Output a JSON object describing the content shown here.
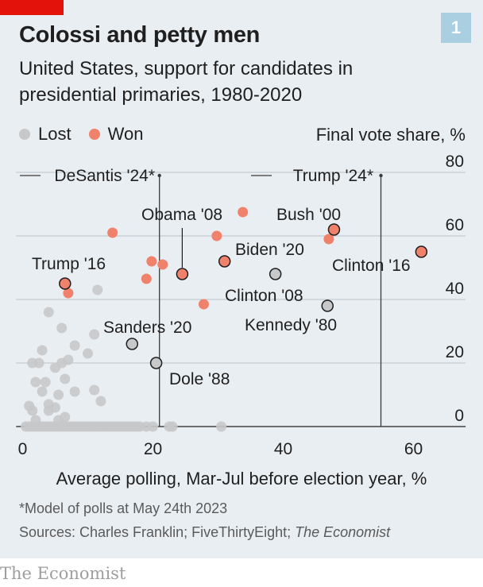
{
  "header": {
    "title": "Colossi and petty men",
    "subtitle": "United States, support for candidates in presidential primaries, 1980-2020",
    "badge": "1"
  },
  "legend": {
    "lost": "Lost",
    "won": "Won"
  },
  "colors": {
    "lost": "#c7c8ca",
    "won": "#f0826c",
    "outline": "#1f1f1f",
    "grid": "#b9c3ca",
    "background": "#e9eef2",
    "accent": "#e3120b"
  },
  "footer": {
    "footnote": "*Model of polls at May 24th 2023",
    "sources_prefix": "Sources: Charles Franklin; FiveThirtyEight; ",
    "sources_italic": "The Economist",
    "brand": "The Economist"
  },
  "chart_data": {
    "type": "scatter",
    "xlabel": "Average polling, Mar-Jul before election year, %",
    "ylabel": "Final vote share, %",
    "xlim": [
      -1,
      68
    ],
    "ylim": [
      0,
      80
    ],
    "xticks": [
      0,
      20,
      40,
      60
    ],
    "yticks": [
      0,
      20,
      40,
      60,
      80
    ],
    "grid": true,
    "legend_position": "top-left",
    "series": [
      {
        "name": "Lost",
        "points": [
          [
            0.5,
            0
          ],
          [
            1,
            0
          ],
          [
            1.5,
            0
          ],
          [
            2,
            0
          ],
          [
            2.5,
            0
          ],
          [
            3,
            0
          ],
          [
            3.5,
            0
          ],
          [
            4,
            0
          ],
          [
            4.5,
            0
          ],
          [
            5,
            0
          ],
          [
            5.5,
            0
          ],
          [
            6,
            0
          ],
          [
            6.5,
            0
          ],
          [
            7,
            0
          ],
          [
            7.5,
            0
          ],
          [
            8,
            0
          ],
          [
            8.5,
            0
          ],
          [
            9,
            0
          ],
          [
            9.5,
            0
          ],
          [
            10,
            0
          ],
          [
            10.5,
            0
          ],
          [
            11,
            0
          ],
          [
            11.5,
            0
          ],
          [
            12,
            0
          ],
          [
            12.5,
            0
          ],
          [
            13,
            0
          ],
          [
            13.5,
            0
          ],
          [
            14,
            0
          ],
          [
            14.5,
            0
          ],
          [
            15,
            0
          ],
          [
            15.5,
            0
          ],
          [
            16,
            0
          ],
          [
            16.5,
            0
          ],
          [
            17,
            0
          ],
          [
            17.5,
            0
          ],
          [
            18,
            0
          ],
          [
            19,
            0
          ],
          [
            20,
            0
          ],
          [
            22.5,
            0
          ],
          [
            23,
            0
          ],
          [
            30.5,
            0
          ],
          [
            1,
            6.5
          ],
          [
            1.5,
            5
          ],
          [
            2,
            2
          ],
          [
            1.5,
            20
          ],
          [
            2.5,
            20
          ],
          [
            2,
            14
          ],
          [
            3,
            24
          ],
          [
            3,
            11
          ],
          [
            3.5,
            14
          ],
          [
            4,
            5
          ],
          [
            4,
            36
          ],
          [
            4,
            7
          ],
          [
            5,
            18.5
          ],
          [
            5.5,
            10
          ],
          [
            5,
            6
          ],
          [
            5.5,
            2
          ],
          [
            6,
            20
          ],
          [
            6,
            31
          ],
          [
            6.5,
            15
          ],
          [
            6.5,
            3
          ],
          [
            7,
            21
          ],
          [
            8,
            25.5
          ],
          [
            8,
            11
          ],
          [
            10,
            23
          ],
          [
            11,
            29
          ],
          [
            11,
            11.5
          ],
          [
            11.5,
            43
          ],
          [
            12,
            8
          ]
        ],
        "labelled": [
          {
            "x": 16.8,
            "y": 26,
            "label": "Sanders '20"
          },
          {
            "x": 38.8,
            "y": 48,
            "label": "Clinton '08"
          },
          {
            "x": 46.8,
            "y": 38,
            "label": "Kennedy '80"
          },
          {
            "x": 20.5,
            "y": 20,
            "label": "Dole '88"
          }
        ]
      },
      {
        "name": "Won",
        "points": [
          [
            7,
            42
          ],
          [
            13.8,
            61
          ],
          [
            19.8,
            52
          ],
          [
            21.5,
            51
          ],
          [
            19,
            46.5
          ],
          [
            27.8,
            38.5
          ],
          [
            29.8,
            60
          ],
          [
            33.8,
            67.5
          ],
          [
            47,
            59
          ]
        ],
        "labelled": [
          {
            "x": 6.5,
            "y": 45,
            "label": "Trump '16"
          },
          {
            "x": 24.5,
            "y": 48,
            "label": "Obama '08"
          },
          {
            "x": 31,
            "y": 52,
            "label": "Biden '20"
          },
          {
            "x": 47.8,
            "y": 62,
            "label": "Bush '00"
          },
          {
            "x": 61.2,
            "y": 55,
            "label": "Clinton '16"
          }
        ]
      }
    ],
    "references": [
      {
        "x": 21,
        "label": "DeSantis '24*"
      },
      {
        "x": 55,
        "label": "Trump '24*"
      }
    ]
  }
}
